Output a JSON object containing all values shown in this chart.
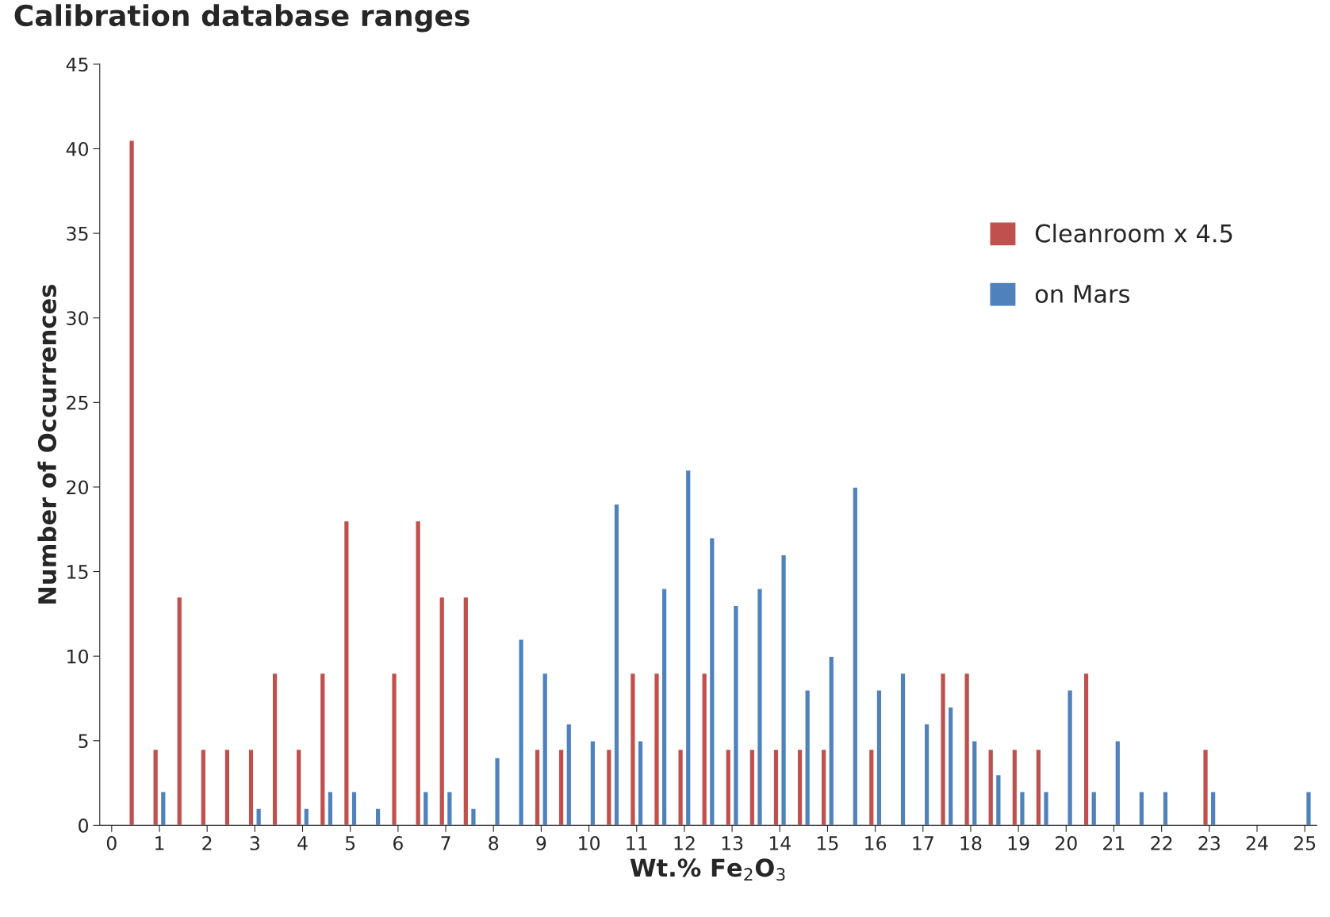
{
  "chart_data": {
    "type": "bar",
    "title": "Calibration database ranges",
    "xlabel": "Wt.% Fe$_{2}$O$_{3}$",
    "ylabel": "Number of Occurrences",
    "x": [
      0.5,
      1,
      1.5,
      2,
      2.5,
      3,
      3.5,
      4,
      4.5,
      5,
      5.5,
      6,
      6.5,
      7,
      7.5,
      8,
      8.5,
      9,
      9.5,
      10,
      10.5,
      11,
      11.5,
      12,
      12.5,
      13,
      13.5,
      14,
      14.5,
      15,
      15.5,
      16,
      16.5,
      17,
      17.5,
      18,
      18.5,
      19,
      19.5,
      20,
      20.5,
      21,
      21.5,
      22,
      22.5,
      23,
      23.5,
      24,
      24.5,
      25
    ],
    "series": [
      {
        "name": "Cleanroom x 4.5",
        "color": "#c0504d",
        "values": [
          40.5,
          4.5,
          13.5,
          4.5,
          4.5,
          4.5,
          9,
          4.5,
          9,
          18,
          null,
          9,
          18,
          13.5,
          13.5,
          null,
          null,
          4.5,
          4.5,
          null,
          4.5,
          9,
          9,
          4.5,
          9,
          4.5,
          4.5,
          4.5,
          4.5,
          4.5,
          null,
          4.5,
          null,
          null,
          9,
          9,
          4.5,
          4.5,
          4.5,
          null,
          9,
          null,
          null,
          null,
          null,
          4.5,
          null,
          null,
          null,
          null
        ]
      },
      {
        "name": "on Mars",
        "color": "#4f81bd",
        "values": [
          null,
          2,
          null,
          null,
          null,
          1,
          null,
          1,
          2,
          2,
          1,
          null,
          2,
          2,
          1,
          4,
          11,
          9,
          6,
          5,
          19,
          5,
          14,
          21,
          17,
          13,
          14,
          16,
          8,
          10,
          20,
          8,
          9,
          6,
          7,
          5,
          3,
          2,
          2,
          8,
          2,
          5,
          2,
          2,
          null,
          2,
          null,
          null,
          null,
          2
        ]
      }
    ],
    "xlim": [
      -0.25,
      25.25
    ],
    "xticks": [
      0,
      1,
      2,
      3,
      4,
      5,
      6,
      7,
      8,
      9,
      10,
      11,
      12,
      13,
      14,
      15,
      16,
      17,
      18,
      19,
      20,
      21,
      22,
      23,
      24,
      25
    ],
    "ylim": [
      0,
      45
    ],
    "yticks": [
      0,
      5,
      10,
      15,
      20,
      25,
      30,
      35,
      40,
      45
    ],
    "grid": false,
    "legend": "top right"
  }
}
